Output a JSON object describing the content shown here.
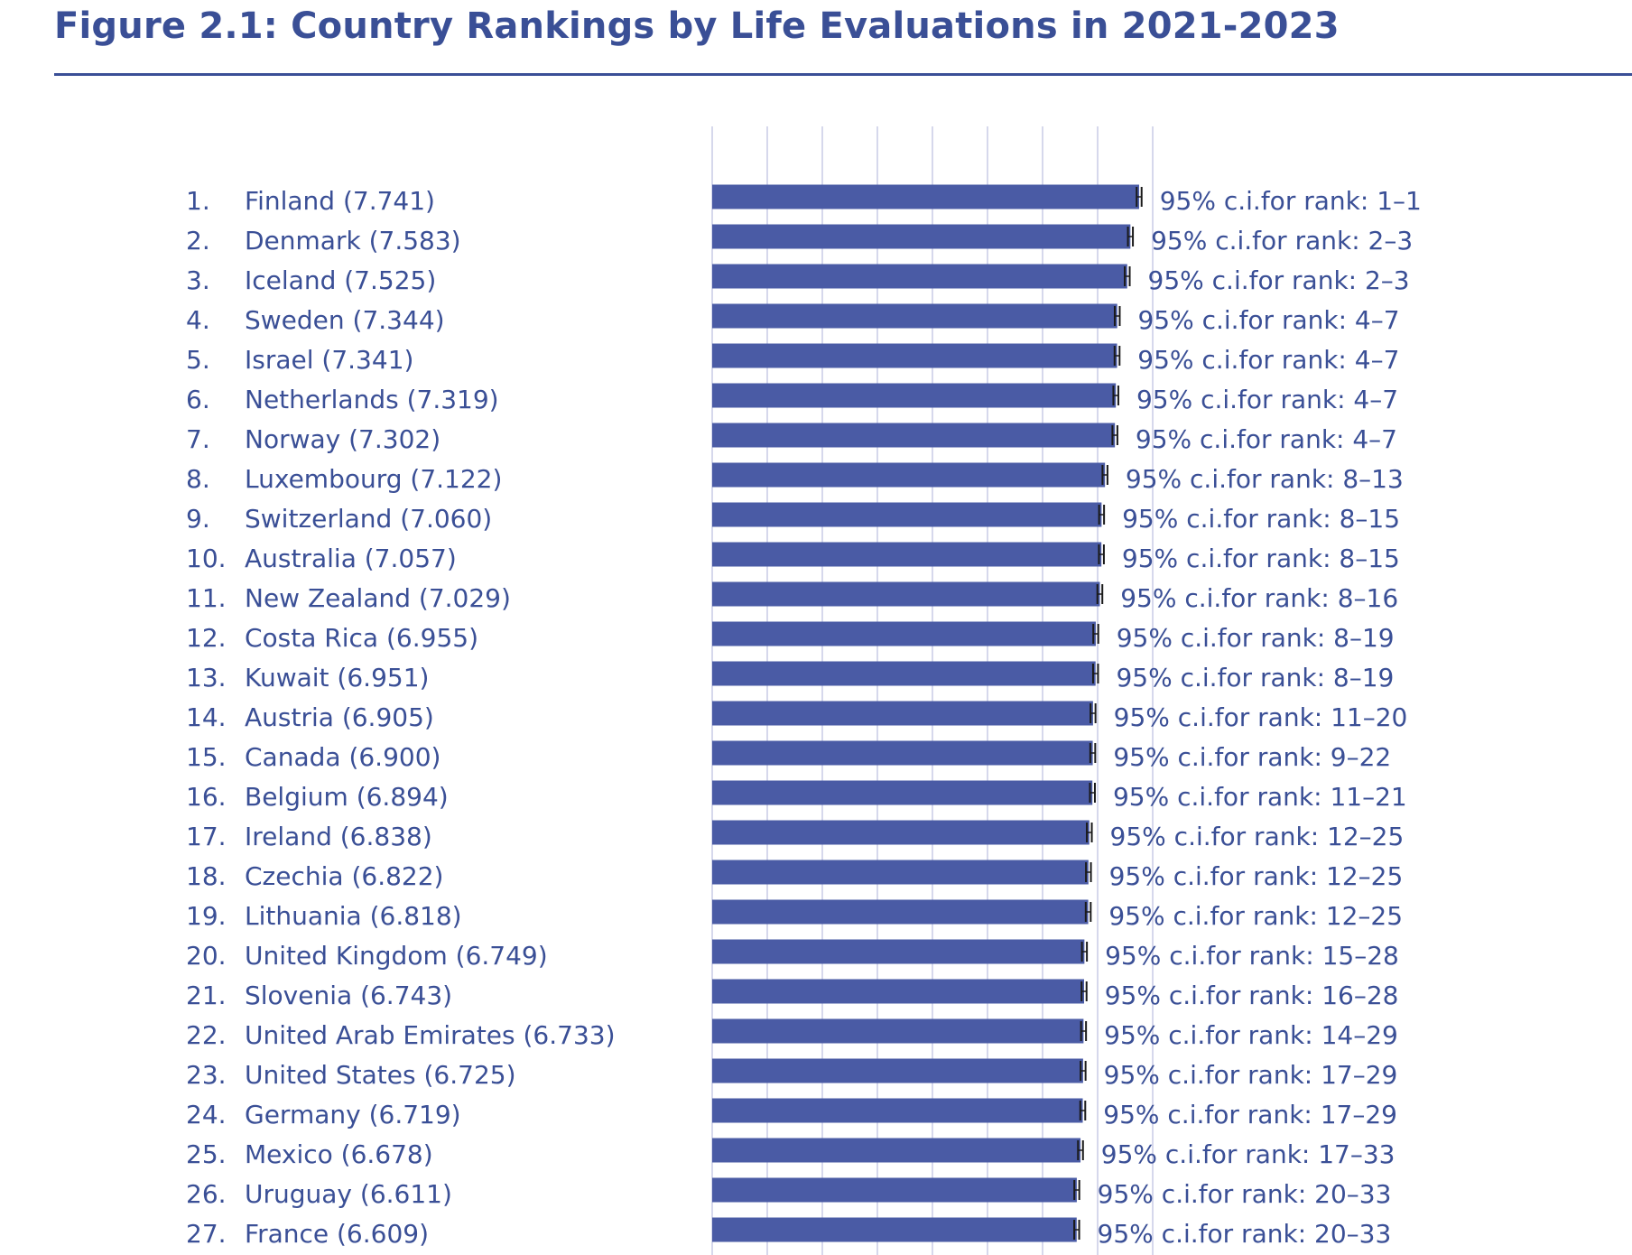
{
  "figure_title": "Figure 2.1: Country Rankings by Life Evaluations in 2021-2023",
  "colors": {
    "bar": "#4a5ba5",
    "text": "#3a4f96",
    "grid": "#c9cbe6",
    "whisker": "#1a1a1a"
  },
  "chart_data": {
    "type": "bar",
    "orientation": "horizontal",
    "grid": true,
    "rows": [
      {
        "rank": "1.",
        "country": "Finland (7.741)",
        "value": 7.741,
        "ci_label": "95% c.i.for rank: 1–1"
      },
      {
        "rank": "2.",
        "country": "Denmark (7.583)",
        "value": 7.583,
        "ci_label": "95% c.i.for rank: 2–3"
      },
      {
        "rank": "3.",
        "country": "Iceland (7.525)",
        "value": 7.525,
        "ci_label": "95% c.i.for rank: 2–3"
      },
      {
        "rank": "4.",
        "country": "Sweden (7.344)",
        "value": 7.344,
        "ci_label": "95% c.i.for rank: 4–7"
      },
      {
        "rank": "5.",
        "country": "Israel (7.341)",
        "value": 7.341,
        "ci_label": "95% c.i.for rank: 4–7"
      },
      {
        "rank": "6.",
        "country": "Netherlands (7.319)",
        "value": 7.319,
        "ci_label": "95% c.i.for rank: 4–7"
      },
      {
        "rank": "7.",
        "country": "Norway (7.302)",
        "value": 7.302,
        "ci_label": "95% c.i.for rank: 4–7"
      },
      {
        "rank": "8.",
        "country": "Luxembourg (7.122)",
        "value": 7.122,
        "ci_label": "95% c.i.for rank: 8–13"
      },
      {
        "rank": "9.",
        "country": "Switzerland (7.060)",
        "value": 7.06,
        "ci_label": "95% c.i.for rank: 8–15"
      },
      {
        "rank": "10.",
        "country": "Australia (7.057)",
        "value": 7.057,
        "ci_label": "95% c.i.for rank: 8–15"
      },
      {
        "rank": "11.",
        "country": "New Zealand (7.029)",
        "value": 7.029,
        "ci_label": "95% c.i.for rank: 8–16"
      },
      {
        "rank": "12.",
        "country": "Costa Rica (6.955)",
        "value": 6.955,
        "ci_label": "95% c.i.for rank: 8–19"
      },
      {
        "rank": "13.",
        "country": "Kuwait (6.951)",
        "value": 6.951,
        "ci_label": "95% c.i.for rank: 8–19"
      },
      {
        "rank": "14.",
        "country": "Austria (6.905)",
        "value": 6.905,
        "ci_label": "95% c.i.for rank: 11–20"
      },
      {
        "rank": "15.",
        "country": "Canada (6.900)",
        "value": 6.9,
        "ci_label": "95% c.i.for rank: 9–22"
      },
      {
        "rank": "16.",
        "country": "Belgium (6.894)",
        "value": 6.894,
        "ci_label": "95% c.i.for rank: 11–21"
      },
      {
        "rank": "17.",
        "country": "Ireland (6.838)",
        "value": 6.838,
        "ci_label": "95% c.i.for rank: 12–25"
      },
      {
        "rank": "18.",
        "country": "Czechia (6.822)",
        "value": 6.822,
        "ci_label": "95% c.i.for rank: 12–25"
      },
      {
        "rank": "19.",
        "country": "Lithuania (6.818)",
        "value": 6.818,
        "ci_label": "95% c.i.for rank: 12–25"
      },
      {
        "rank": "20.",
        "country": "United Kingdom (6.749)",
        "value": 6.749,
        "ci_label": "95% c.i.for rank: 15–28"
      },
      {
        "rank": "21.",
        "country": "Slovenia (6.743)",
        "value": 6.743,
        "ci_label": "95% c.i.for rank: 16–28"
      },
      {
        "rank": "22.",
        "country": "United Arab Emirates (6.733)",
        "value": 6.733,
        "ci_label": "95% c.i.for rank: 14–29"
      },
      {
        "rank": "23.",
        "country": "United States (6.725)",
        "value": 6.725,
        "ci_label": "95% c.i.for rank: 17–29"
      },
      {
        "rank": "24.",
        "country": "Germany (6.719)",
        "value": 6.719,
        "ci_label": "95% c.i.for rank: 17–29"
      },
      {
        "rank": "25.",
        "country": "Mexico (6.678)",
        "value": 6.678,
        "ci_label": "95% c.i.for rank: 17–33"
      },
      {
        "rank": "26.",
        "country": "Uruguay (6.611)",
        "value": 6.611,
        "ci_label": "95% c.i.for rank: 20–33"
      },
      {
        "rank": "27.",
        "country": "France (6.609)",
        "value": 6.609,
        "ci_label": "95% c.i.for rank: 20–33"
      }
    ]
  }
}
